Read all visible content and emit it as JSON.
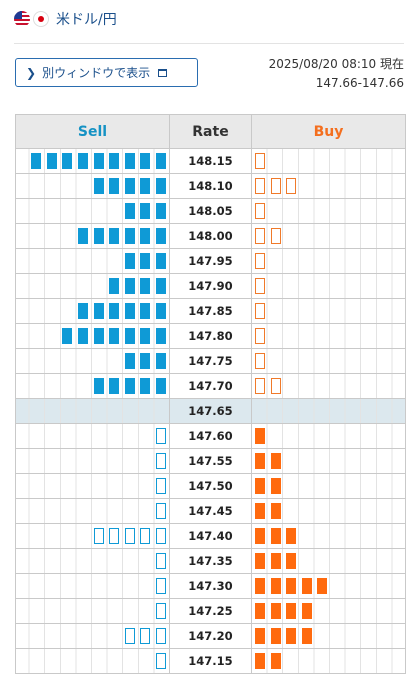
{
  "header": {
    "flag_icons": [
      "us-flag-icon",
      "jp-flag-icon"
    ],
    "pair": "米ドル/円"
  },
  "toolbar": {
    "open_window_label": "別ウィンドウで表示",
    "timestamp": "2025/08/20 08:10 現在",
    "range": "147.66-147.66"
  },
  "board": {
    "headers": {
      "sell": "Sell",
      "rate": "Rate",
      "buy": "Buy"
    },
    "colors": {
      "sell": "#0f9ad6",
      "buy": "#ff6a0e",
      "mid_row": "#dce8ee"
    },
    "rows": [
      {
        "rate": "148.15",
        "sell": 9,
        "sell_style": "filled",
        "buy": 1,
        "buy_style": "outline"
      },
      {
        "rate": "148.10",
        "sell": 5,
        "sell_style": "filled",
        "buy": 3,
        "buy_style": "outline"
      },
      {
        "rate": "148.05",
        "sell": 3,
        "sell_style": "filled",
        "buy": 1,
        "buy_style": "outline"
      },
      {
        "rate": "148.00",
        "sell": 6,
        "sell_style": "filled",
        "buy": 2,
        "buy_style": "outline"
      },
      {
        "rate": "147.95",
        "sell": 3,
        "sell_style": "filled",
        "buy": 1,
        "buy_style": "outline"
      },
      {
        "rate": "147.90",
        "sell": 4,
        "sell_style": "filled",
        "buy": 1,
        "buy_style": "outline"
      },
      {
        "rate": "147.85",
        "sell": 6,
        "sell_style": "filled",
        "buy": 1,
        "buy_style": "outline"
      },
      {
        "rate": "147.80",
        "sell": 7,
        "sell_style": "filled",
        "buy": 1,
        "buy_style": "outline"
      },
      {
        "rate": "147.75",
        "sell": 3,
        "sell_style": "filled",
        "buy": 1,
        "buy_style": "outline"
      },
      {
        "rate": "147.70",
        "sell": 5,
        "sell_style": "filled",
        "buy": 2,
        "buy_style": "outline"
      },
      {
        "rate": "147.65",
        "sell": 0,
        "sell_style": "filled",
        "buy": 0,
        "buy_style": "filled",
        "mid": true
      },
      {
        "rate": "147.60",
        "sell": 1,
        "sell_style": "outline",
        "buy": 1,
        "buy_style": "filled"
      },
      {
        "rate": "147.55",
        "sell": 1,
        "sell_style": "outline",
        "buy": 2,
        "buy_style": "filled"
      },
      {
        "rate": "147.50",
        "sell": 1,
        "sell_style": "outline",
        "buy": 2,
        "buy_style": "filled"
      },
      {
        "rate": "147.45",
        "sell": 1,
        "sell_style": "outline",
        "buy": 2,
        "buy_style": "filled"
      },
      {
        "rate": "147.40",
        "sell": 5,
        "sell_style": "outline",
        "buy": 3,
        "buy_style": "filled"
      },
      {
        "rate": "147.35",
        "sell": 1,
        "sell_style": "outline",
        "buy": 3,
        "buy_style": "filled"
      },
      {
        "rate": "147.30",
        "sell": 1,
        "sell_style": "outline",
        "buy": 5,
        "buy_style": "filled"
      },
      {
        "rate": "147.25",
        "sell": 1,
        "sell_style": "outline",
        "buy": 4,
        "buy_style": "filled"
      },
      {
        "rate": "147.20",
        "sell": 3,
        "sell_style": "outline",
        "buy": 4,
        "buy_style": "filled"
      },
      {
        "rate": "147.15",
        "sell": 1,
        "sell_style": "outline",
        "buy": 2,
        "buy_style": "filled"
      }
    ]
  }
}
